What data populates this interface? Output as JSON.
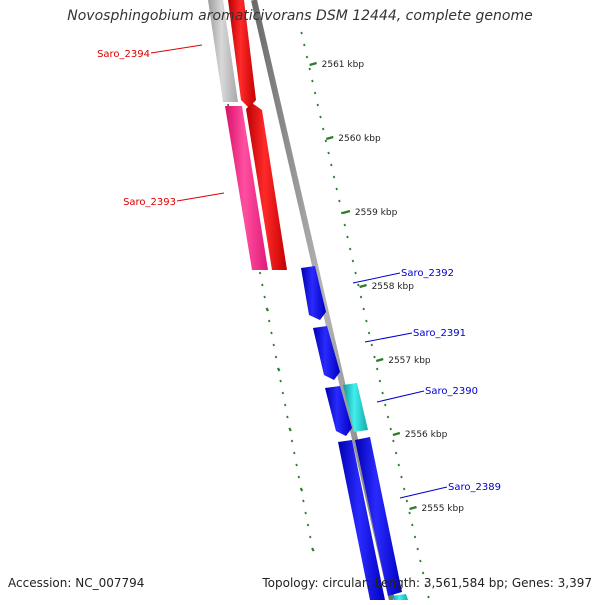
{
  "title": "Novosphingobium aromaticivorans DSM 12444, complete genome",
  "footer": {
    "accession": "Accession: NC_007794",
    "summary": "Topology: circular; Length: 3,561,584 bp; Genes: 3,397"
  },
  "scale_unit": "kbp",
  "ticks": [
    {
      "value": 2561,
      "label": "2561 kbp"
    },
    {
      "value": 2560,
      "label": "2560 kbp"
    },
    {
      "value": 2559,
      "label": "2559 kbp"
    },
    {
      "value": 2558,
      "label": "2558 kbp"
    },
    {
      "value": 2557,
      "label": "2557 kbp"
    },
    {
      "value": 2556,
      "label": "2556 kbp"
    },
    {
      "value": 2555,
      "label": "2555 kbp"
    }
  ],
  "genes": [
    {
      "name": "Saro_2394",
      "strand": "-",
      "label_color": "#dd0000"
    },
    {
      "name": "Saro_2393",
      "strand": "-",
      "label_color": "#dd0000"
    },
    {
      "name": "Saro_2392",
      "strand": "+",
      "label_color": "#0000cc"
    },
    {
      "name": "Saro_2391",
      "strand": "+",
      "label_color": "#0000cc"
    },
    {
      "name": "Saro_2390",
      "strand": "+",
      "label_color": "#0000cc"
    },
    {
      "name": "Saro_2389",
      "strand": "+",
      "label_color": "#0000cc"
    }
  ],
  "colors": {
    "backbone": "#8a8a8a",
    "tick": "#2e7d2e",
    "red_track": "#ee0000",
    "pink_track": "#ff2a8a",
    "grey_track": "#b8b8b8",
    "blue_track": "#1111ee",
    "cyan_track": "#22cccc"
  }
}
